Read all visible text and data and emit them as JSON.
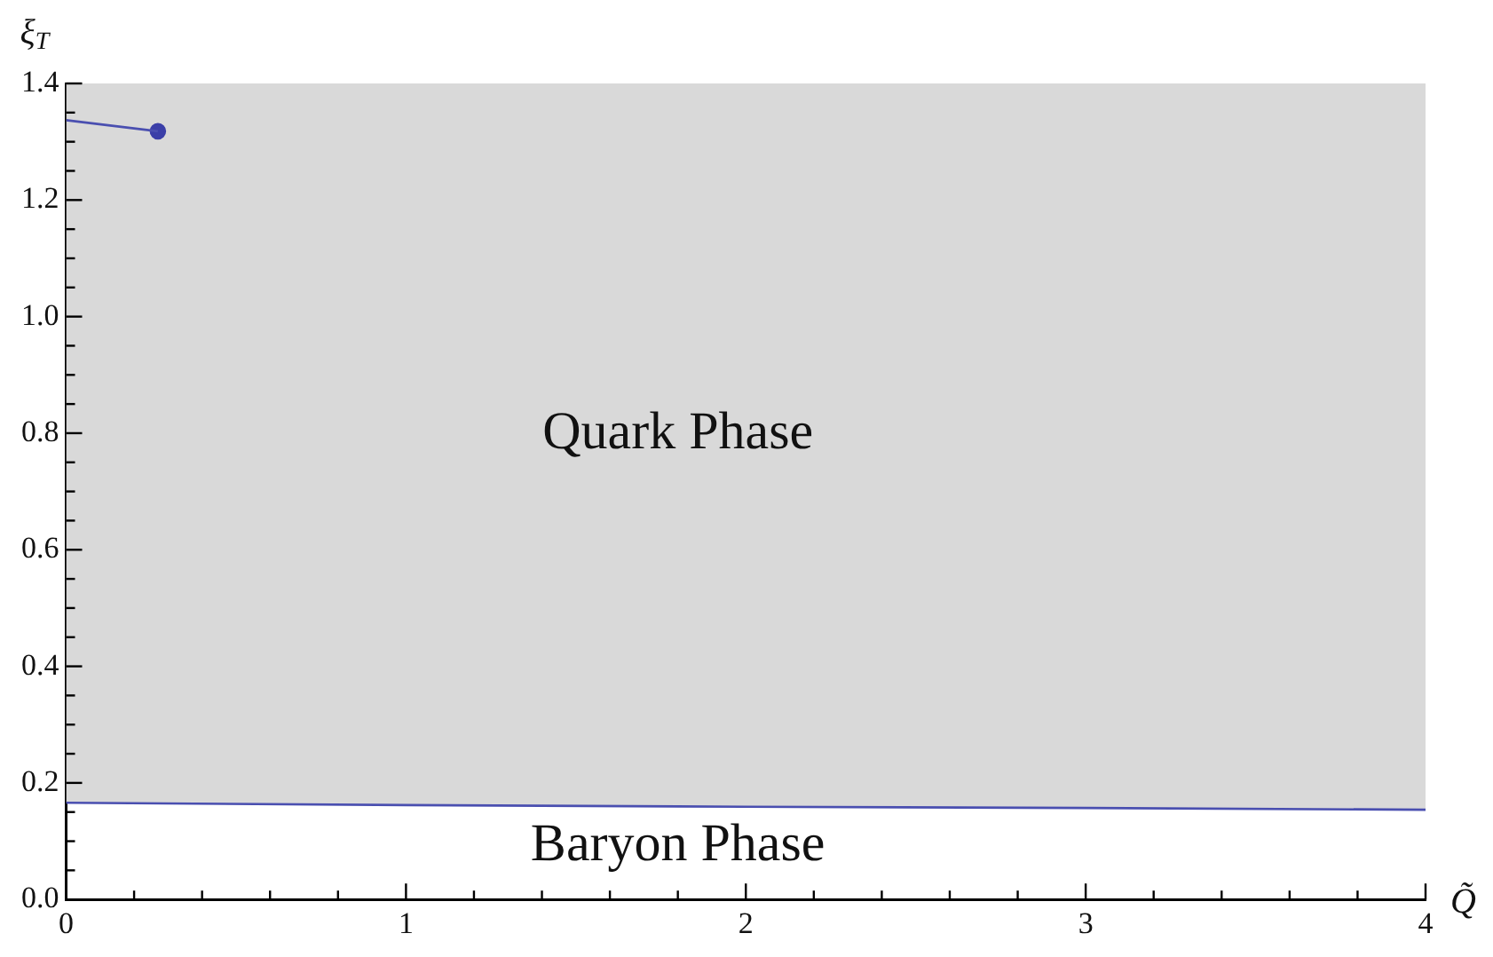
{
  "chart_data": {
    "type": "line",
    "xlabel": "Q̃",
    "ylabel": "ξ$_{T}$",
    "xlim": [
      0,
      4
    ],
    "ylim": [
      0,
      1.4
    ],
    "xticks": [
      0,
      {
        "value": 0.2,
        "label": null
      },
      {
        "value": 0.4,
        "label": null
      },
      {
        "value": 0.6,
        "label": null
      },
      {
        "value": 0.8,
        "label": null
      },
      1,
      {
        "value": 1.2,
        "label": null
      },
      {
        "value": 1.4,
        "label": null
      },
      {
        "value": 1.6,
        "label": null
      },
      {
        "value": 1.8,
        "label": null
      },
      2,
      {
        "value": 2.2,
        "label": null
      },
      {
        "value": 2.4,
        "label": null
      },
      {
        "value": 2.6,
        "label": null
      },
      {
        "value": 2.8,
        "label": null
      },
      3,
      {
        "value": 3.2,
        "label": null
      },
      {
        "value": 3.4,
        "label": null
      },
      {
        "value": 3.6,
        "label": null
      },
      {
        "value": 3.8,
        "label": null
      },
      4
    ],
    "yticks": [
      {
        "value": 0,
        "label": "0.0"
      },
      {
        "value": 0.05,
        "label": null
      },
      {
        "value": 0.1,
        "label": null
      },
      {
        "value": 0.15,
        "label": null
      },
      0.2,
      {
        "value": 0.25,
        "label": null
      },
      {
        "value": 0.3,
        "label": null
      },
      {
        "value": 0.35,
        "label": null
      },
      0.4,
      {
        "value": 0.45,
        "label": null
      },
      {
        "value": 0.5,
        "label": null
      },
      {
        "value": 0.55,
        "label": null
      },
      0.6,
      {
        "value": 0.65,
        "label": null
      },
      {
        "value": 0.7,
        "label": null
      },
      {
        "value": 0.75,
        "label": null
      },
      0.8,
      {
        "value": 0.85,
        "label": null
      },
      {
        "value": 0.9,
        "label": null
      },
      {
        "value": 0.95,
        "label": null
      },
      {
        "value": 1,
        "label": "1.0"
      },
      {
        "value": 1.05,
        "label": null
      },
      {
        "value": 1.1,
        "label": null
      },
      {
        "value": 1.15,
        "label": null
      },
      1.2,
      {
        "value": 1.25,
        "label": null
      },
      {
        "value": 1.3,
        "label": null
      },
      {
        "value": 1.35,
        "label": null
      },
      1.4
    ],
    "grid": false,
    "legend": false,
    "series": [
      {
        "color": "#4a4fb0",
        "marker": "none",
        "x": [
          0,
          1,
          2,
          3,
          4
        ],
        "values": [
          0.166,
          0.162,
          0.159,
          0.157,
          0.154
        ],
        "lower": [
          0.166,
          0.162,
          0.159,
          0.157,
          0.154
        ],
        "upper": [
          1.4,
          1.4,
          1.4,
          1.4,
          1.4
        ]
      },
      {
        "color": "#4a4fb0",
        "marker": "none",
        "x": [
          0,
          0.27
        ],
        "values": [
          1.337,
          1.318
        ]
      },
      {
        "type": "scatter",
        "color": "#3b3fa8",
        "marker": "circle",
        "x": [
          0.27
        ],
        "values": [
          1.318
        ]
      }
    ],
    "annotations": [
      "Quark Phase",
      "Baryon Phase"
    ]
  }
}
